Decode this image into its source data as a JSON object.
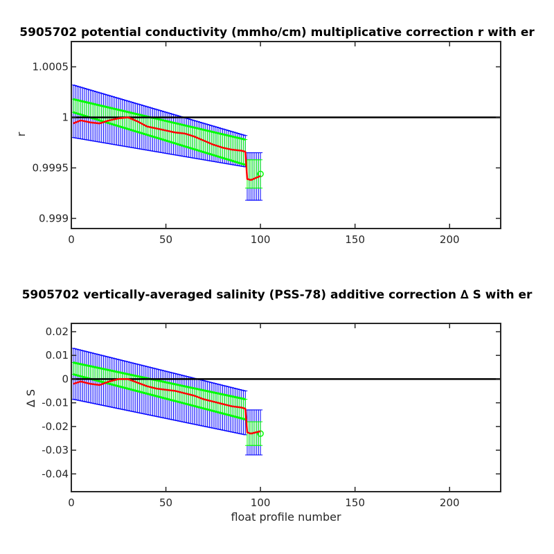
{
  "colors": {
    "error_bars_outer": "#0000ff",
    "error_bars_inner": "#00ff00",
    "fit_line": "#00ff00",
    "correction_line": "#ff0000",
    "reference_line": "#000000"
  },
  "chart_data": [
    {
      "type": "line",
      "title": "5905702 potential conductivity (mmho/cm) multiplicative correction r with er",
      "xlabel": "",
      "ylabel": "r",
      "xlim": [
        0,
        227
      ],
      "ylim": [
        0.9989,
        1.00075
      ],
      "x_ticks": [
        "0",
        "50",
        "100",
        "150",
        "200"
      ],
      "y_ticks": [
        "0.999",
        "0.9995",
        "1",
        "1.0005"
      ],
      "reference_value": 1,
      "profiles": {
        "first": 1,
        "last": 100,
        "step_change_at": 93
      },
      "series": [
        {
          "name": "",
          "role": "correction",
          "x": [
            1,
            5,
            10,
            15,
            20,
            25,
            30,
            35,
            40,
            45,
            50,
            55,
            60,
            65,
            70,
            75,
            80,
            85,
            90,
            92,
            93,
            95,
            100
          ],
          "values": [
            0.99994,
            0.99997,
            0.99995,
            0.99994,
            0.99997,
            0.99999,
            1.0,
            0.99996,
            0.99991,
            0.99989,
            0.99987,
            0.99985,
            0.99984,
            0.99981,
            0.99977,
            0.99973,
            0.9997,
            0.99968,
            0.99967,
            0.99966,
            0.99939,
            0.99938,
            0.99942
          ]
        },
        {
          "name": "",
          "role": "fit_upper",
          "x": [
            1,
            92
          ],
          "values": [
            1.00018,
            0.99978
          ]
        },
        {
          "name": "",
          "role": "fit_lower",
          "x": [
            1,
            92
          ],
          "values": [
            1.00005,
            0.99953
          ]
        },
        {
          "name": "",
          "role": "error_outer_top",
          "x": [
            1,
            92
          ],
          "values": [
            1.00032,
            0.99982
          ]
        },
        {
          "name": "",
          "role": "error_outer_bottom",
          "x": [
            1,
            92
          ],
          "values": [
            0.9998,
            0.99951
          ]
        },
        {
          "name": "",
          "role": "error_after_step",
          "x": [
            93,
            100
          ],
          "upper": 0.99965,
          "lower": 0.99918,
          "inner_upper": 0.99958,
          "inner_lower": 0.9993
        }
      ]
    },
    {
      "type": "line",
      "title": "5905702 vertically-averaged salinity (PSS-78) additive correction ∆ S with er",
      "xlabel": "float profile number",
      "ylabel": "∆ S",
      "xlim": [
        0,
        227
      ],
      "ylim": [
        -0.0475,
        0.0235
      ],
      "x_ticks": [
        "0",
        "50",
        "100",
        "150",
        "200"
      ],
      "y_ticks": [
        "-0.04",
        "-0.03",
        "-0.02",
        "-0.01",
        "0",
        "0.01",
        "0.02"
      ],
      "reference_value": 0,
      "profiles": {
        "first": 1,
        "last": 100,
        "step_change_at": 93
      },
      "series": [
        {
          "name": "",
          "role": "correction",
          "x": [
            1,
            5,
            10,
            15,
            20,
            25,
            30,
            35,
            40,
            45,
            50,
            55,
            60,
            65,
            70,
            75,
            80,
            85,
            90,
            92,
            93,
            95,
            100
          ],
          "values": [
            -0.002,
            -0.001,
            -0.002,
            -0.0025,
            -0.001,
            0.0,
            0.0,
            -0.0015,
            -0.003,
            -0.004,
            -0.0045,
            -0.005,
            -0.006,
            -0.007,
            -0.0085,
            -0.0095,
            -0.0105,
            -0.0115,
            -0.012,
            -0.0125,
            -0.0225,
            -0.023,
            -0.022
          ]
        },
        {
          "name": "",
          "role": "fit_upper",
          "x": [
            1,
            92
          ],
          "values": [
            0.007,
            -0.0085
          ]
        },
        {
          "name": "",
          "role": "fit_lower",
          "x": [
            1,
            92
          ],
          "values": [
            0.002,
            -0.017
          ]
        },
        {
          "name": "",
          "role": "error_outer_top",
          "x": [
            1,
            92
          ],
          "values": [
            0.013,
            -0.005
          ]
        },
        {
          "name": "",
          "role": "error_outer_bottom",
          "x": [
            1,
            92
          ],
          "values": [
            -0.0085,
            -0.0235
          ]
        },
        {
          "name": "",
          "role": "error_after_step",
          "x": [
            93,
            100
          ],
          "upper": -0.013,
          "lower": -0.032,
          "inner_upper": -0.018,
          "inner_lower": -0.028
        }
      ]
    }
  ]
}
